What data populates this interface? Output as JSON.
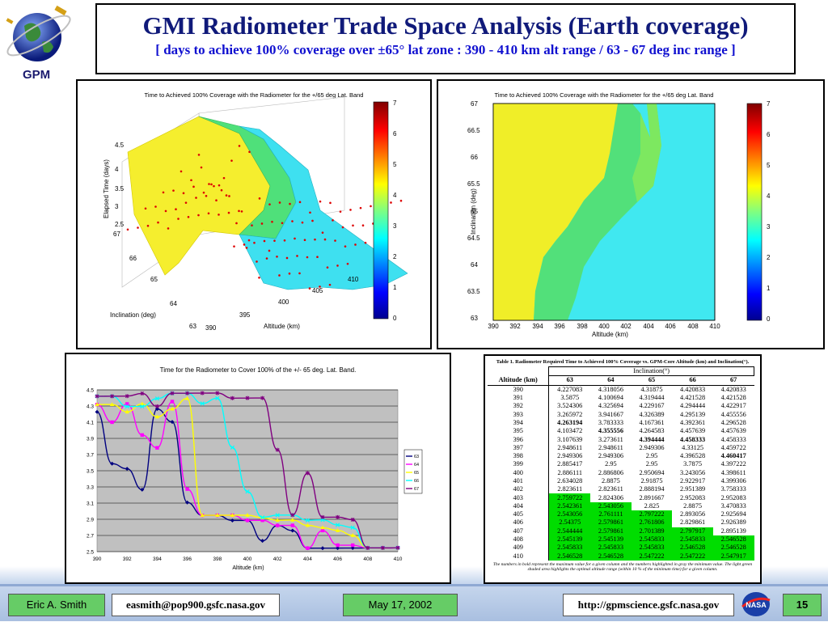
{
  "logo": {
    "text": "GPM"
  },
  "header": {
    "title": "GMI Radiometer Trade Space Analysis (Earth coverage)",
    "subtitle": "[ days to achieve 100% coverage over ±65° lat zone : 390 - 410 km alt range / 63 - 67 deg inc range ]"
  },
  "surface_plot": {
    "title": "Time to Achieved 100% Coverage with the Radiometer for the +/65 deg Lat. Band",
    "zlabel": "Elapsed Time (days)",
    "ylabel": "Inclination (deg)",
    "xlabel": "Altitude (km)",
    "z_ticks": [
      "4.5",
      "4",
      "3.5",
      "3",
      "2.5"
    ],
    "y_ticks": [
      "67",
      "66",
      "65",
      "64",
      "63"
    ],
    "x_ticks": [
      "390",
      "395",
      "400",
      "405",
      "410"
    ],
    "colorbar_ticks": [
      "7",
      "6",
      "5",
      "4",
      "3",
      "2",
      "1",
      "0"
    ]
  },
  "contour_plot": {
    "title": "Time to Achieved 100% Coverage with the Radiometer for the +/65 deg Lat. Band",
    "ylabel": "Inclination (deg)",
    "xlabel": "Altitude (km)",
    "y_ticks": [
      "67",
      "66.5",
      "66",
      "65.5",
      "65",
      "64.5",
      "64",
      "63.5",
      "63"
    ],
    "x_ticks": [
      "390",
      "392",
      "394",
      "396",
      "398",
      "400",
      "402",
      "404",
      "406",
      "408",
      "410"
    ],
    "colorbar_ticks": [
      "7",
      "6",
      "5",
      "4",
      "3",
      "2",
      "1",
      "0"
    ]
  },
  "chart_data": [
    {
      "type": "line",
      "title": "Time for the Radiometer to Cover 100% of the +/- 65 deg. Lat. Band.",
      "xlabel": "Altitude (km)",
      "ylabel": "",
      "x": [
        390,
        391,
        392,
        393,
        394,
        395,
        396,
        397,
        398,
        399,
        400,
        401,
        402,
        403,
        404,
        405,
        406,
        407,
        408,
        409,
        410
      ],
      "xlim": [
        390,
        410
      ],
      "ylim": [
        2.5,
        4.5
      ],
      "x_ticks": [
        "390",
        "392",
        "394",
        "396",
        "398",
        "400",
        "402",
        "404",
        "406",
        "408",
        "410"
      ],
      "y_ticks": [
        "4.5",
        "4.3",
        "4.1",
        "3.9",
        "3.7",
        "3.5",
        "3.3",
        "3.1",
        "2.9",
        "2.7",
        "2.5"
      ],
      "grid": true,
      "legend_position": "right",
      "series": [
        {
          "name": "63",
          "color": "#000080",
          "values": [
            4.227083,
            3.5875,
            3.524306,
            3.265972,
            4.263194,
            4.103472,
            3.107639,
            2.948611,
            2.949306,
            2.885417,
            2.886111,
            2.634028,
            2.823611,
            2.759722,
            2.542361,
            2.543056,
            2.54375,
            2.544444,
            2.545139,
            2.545833,
            2.546528
          ]
        },
        {
          "name": "64",
          "color": "#ff00ff",
          "values": [
            4.318056,
            4.100694,
            4.325694,
            3.941667,
            3.783333,
            4.355556,
            3.273611,
            2.948611,
            2.949306,
            2.95,
            2.886806,
            2.8875,
            2.823611,
            2.824306,
            2.543056,
            2.761111,
            2.579861,
            2.579861,
            2.545139,
            2.545833,
            2.546528
          ]
        },
        {
          "name": "65",
          "color": "#ffff00",
          "values": [
            4.31875,
            4.319444,
            4.229167,
            4.326389,
            4.167361,
            4.264583,
            4.394444,
            2.949306,
            2.95,
            2.95,
            2.950694,
            2.91875,
            2.888194,
            2.891667,
            2.825,
            2.797222,
            2.761806,
            2.701389,
            2.545833,
            2.545833,
            2.547222
          ]
        },
        {
          "name": "66",
          "color": "#00ffff",
          "values": [
            4.420833,
            4.421528,
            4.294444,
            4.295139,
            4.392361,
            4.457639,
            4.458333,
            4.33125,
            4.396528,
            3.7875,
            3.243056,
            2.922917,
            2.951389,
            2.952083,
            2.8875,
            2.893056,
            2.829861,
            2.797917,
            2.545833,
            2.546528,
            2.547222
          ]
        },
        {
          "name": "67",
          "color": "#800080",
          "values": [
            4.420833,
            4.421528,
            4.422917,
            4.455556,
            4.296528,
            4.457639,
            4.458333,
            4.459722,
            4.460417,
            4.397222,
            4.398611,
            4.399306,
            3.758333,
            2.952083,
            3.470833,
            2.925694,
            2.926389,
            2.895139,
            2.546528,
            2.546528,
            2.547917
          ]
        }
      ]
    }
  ],
  "table": {
    "caption": "Table 1. Radiometer Required Time to Achieved 100% Coverage vs. GPM-Core Altitude (km) and Inclination(°).",
    "group_header": "Inclination(°)",
    "headers": [
      "Altitude (km)",
      "63",
      "64",
      "65",
      "66",
      "67"
    ],
    "rows": [
      [
        "390",
        "4.227083",
        "4.318056",
        "4.31875",
        "4.420833",
        "4.420833"
      ],
      [
        "391",
        "3.5875",
        "4.100694",
        "4.319444",
        "4.421528",
        "4.421528"
      ],
      [
        "392",
        "3.524306",
        "4.325694",
        "4.229167",
        "4.294444",
        "4.422917"
      ],
      [
        "393",
        "3.265972",
        "3.941667",
        "4.326389",
        "4.295139",
        "4.455556"
      ],
      [
        "394",
        "4.263194",
        "3.783333",
        "4.167361",
        "4.392361",
        "4.296528"
      ],
      [
        "395",
        "4.103472",
        "4.355556",
        "4.264583",
        "4.457639",
        "4.457639"
      ],
      [
        "396",
        "3.107639",
        "3.273611",
        "4.394444",
        "4.458333",
        "4.458333"
      ],
      [
        "397",
        "2.948611",
        "2.948611",
        "2.949306",
        "4.33125",
        "4.459722"
      ],
      [
        "398",
        "2.949306",
        "2.949306",
        "2.95",
        "4.396528",
        "4.460417"
      ],
      [
        "399",
        "2.885417",
        "2.95",
        "2.95",
        "3.7875",
        "4.397222"
      ],
      [
        "400",
        "2.886111",
        "2.886806",
        "2.950694",
        "3.243056",
        "4.398611"
      ],
      [
        "401",
        "2.634028",
        "2.8875",
        "2.91875",
        "2.922917",
        "4.399306"
      ],
      [
        "402",
        "2.823611",
        "2.823611",
        "2.888194",
        "2.951389",
        "3.758333"
      ],
      [
        "403",
        "2.759722",
        "2.824306",
        "2.891667",
        "2.952083",
        "2.952083"
      ],
      [
        "404",
        "2.542361",
        "2.543056",
        "2.825",
        "2.8875",
        "3.470833"
      ],
      [
        "405",
        "2.543056",
        "2.761111",
        "2.797222",
        "2.893056",
        "2.925694"
      ],
      [
        "406",
        "2.54375",
        "2.579861",
        "2.761806",
        "2.829861",
        "2.926389"
      ],
      [
        "407",
        "2.544444",
        "2.579861",
        "2.701389",
        "2.797917",
        "2.895139"
      ],
      [
        "408",
        "2.545139",
        "2.545139",
        "2.545833",
        "2.545833",
        "2.546528"
      ],
      [
        "409",
        "2.545833",
        "2.545833",
        "2.545833",
        "2.546528",
        "2.546528"
      ],
      [
        "410",
        "2.546528",
        "2.546528",
        "2.547222",
        "2.547222",
        "2.547917"
      ]
    ],
    "highlight_color": "#00dd00",
    "footnote": "The numbers in bold represent the maximum value for a given column and the numbers highlighted in gray the minimum value. The light green shaded area highlights the optimal altitude range (within 10 % of the minimum time) for a given column."
  },
  "footer": {
    "author": "Eric A. Smith",
    "email": "easmith@pop900.gsfc.nasa.gov",
    "date": "May 17, 2002",
    "url": "http://gpmscience.gsfc.nasa.gov",
    "page": "15",
    "nasa_logo": "NASA"
  }
}
